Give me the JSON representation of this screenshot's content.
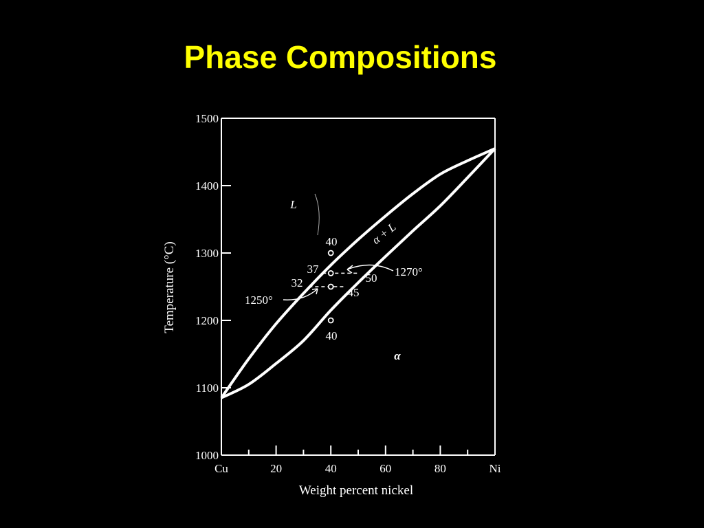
{
  "slide": {
    "title": "Phase Compositions"
  },
  "colors": {
    "background": "#000000",
    "title": "#ffff00",
    "lines": "#ffffff"
  },
  "diagram": {
    "type": "binary-phase-diagram",
    "x_axis": {
      "label": "Weight percent nickel",
      "range": [
        0,
        100
      ],
      "ticks": [
        {
          "value": 0,
          "label": "Cu"
        },
        {
          "value": 20,
          "label": "20"
        },
        {
          "value": 40,
          "label": "40"
        },
        {
          "value": 60,
          "label": "60"
        },
        {
          "value": 80,
          "label": "80"
        },
        {
          "value": 100,
          "label": "Ni"
        }
      ],
      "minor_ticks": [
        10,
        30,
        50,
        70,
        90
      ]
    },
    "y_axis": {
      "label": "Temperature (°C)",
      "range": [
        1000,
        1500
      ],
      "ticks": [
        1000,
        1100,
        1200,
        1300,
        1400,
        1500
      ]
    },
    "phase_labels": {
      "liquid": "L",
      "two_phase": "α + L",
      "solid": "α"
    },
    "liquidus": [
      [
        0,
        1085
      ],
      [
        10,
        1143
      ],
      [
        20,
        1195
      ],
      [
        30,
        1240
      ],
      [
        40,
        1282
      ],
      [
        50,
        1320
      ],
      [
        60,
        1355
      ],
      [
        70,
        1388
      ],
      [
        80,
        1417
      ],
      [
        90,
        1437
      ],
      [
        100,
        1455
      ]
    ],
    "solidus": [
      [
        0,
        1085
      ],
      [
        10,
        1105
      ],
      [
        20,
        1136
      ],
      [
        30,
        1170
      ],
      [
        40,
        1215
      ],
      [
        50,
        1256
      ],
      [
        60,
        1295
      ],
      [
        70,
        1333
      ],
      [
        80,
        1370
      ],
      [
        90,
        1412
      ],
      [
        100,
        1455
      ]
    ],
    "tie_lines": [
      {
        "temperature": 1270,
        "left_x": 37,
        "right_x": 50,
        "left_label": "37",
        "right_label": "50",
        "temp_label": "1270°"
      },
      {
        "temperature": 1250,
        "left_x": 32,
        "right_x": 45,
        "left_label": "32",
        "right_label": "45",
        "temp_label": "1250°"
      }
    ],
    "composition_points": [
      {
        "x": 40,
        "t": 1300,
        "label": "40"
      },
      {
        "x": 40,
        "t": 1270
      },
      {
        "x": 40,
        "t": 1250
      },
      {
        "x": 40,
        "t": 1200,
        "label": "40"
      }
    ]
  }
}
